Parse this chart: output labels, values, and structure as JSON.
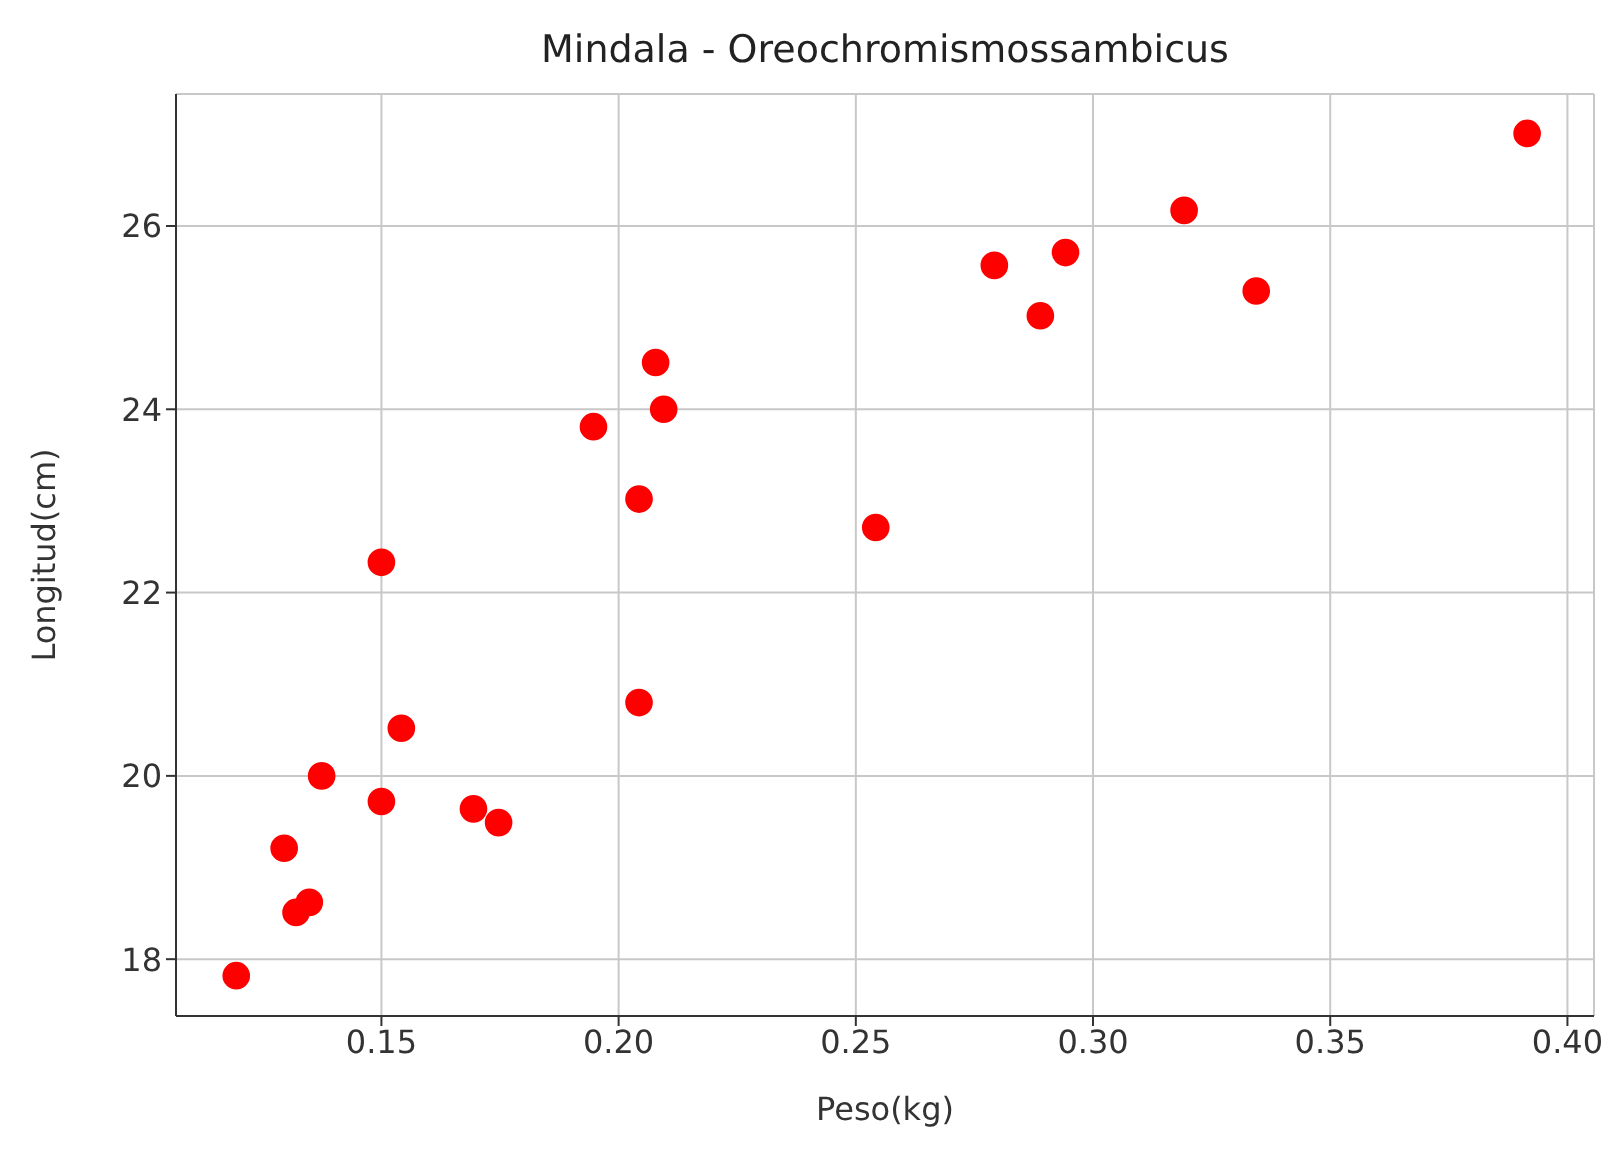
{
  "chart_data": {
    "type": "scatter",
    "title": "Mindala - Oreochromismossambicus",
    "xlabel": "Peso(kg)",
    "ylabel": "Longitud(cm)",
    "x": [
      0.1194,
      0.1295,
      0.132,
      0.1348,
      0.1374,
      0.15,
      0.15,
      0.1542,
      0.1694,
      0.1747,
      0.1947,
      0.2043,
      0.2043,
      0.2078,
      0.2095,
      0.2542,
      0.2792,
      0.2942,
      0.2889,
      0.3192,
      0.3344,
      0.3915
    ],
    "series": [
      {
        "color": "#ff0000",
        "values": [
          17.82,
          19.21,
          18.51,
          18.62,
          20.0,
          19.72,
          22.33,
          20.52,
          19.64,
          19.49,
          23.81,
          23.02,
          20.8,
          24.51,
          24.0,
          22.71,
          25.57,
          25.71,
          25.02,
          26.17,
          25.29,
          27.01
        ]
      }
    ],
    "xlim": [
      0.1067,
      0.4056
    ],
    "ylim": [
      17.38,
      27.44
    ],
    "xticks": [
      {
        "value": 0.15,
        "label": "0.15"
      },
      {
        "value": 0.2,
        "label": "0.20"
      },
      {
        "value": 0.25,
        "label": "0.25"
      },
      {
        "value": 0.3,
        "label": "0.30"
      },
      {
        "value": 0.35,
        "label": "0.35"
      },
      {
        "value": 0.4,
        "label": "0.40"
      }
    ],
    "yticks": [
      18,
      20,
      22,
      24,
      26
    ],
    "grid": true,
    "marker": "circle",
    "legend": false
  }
}
